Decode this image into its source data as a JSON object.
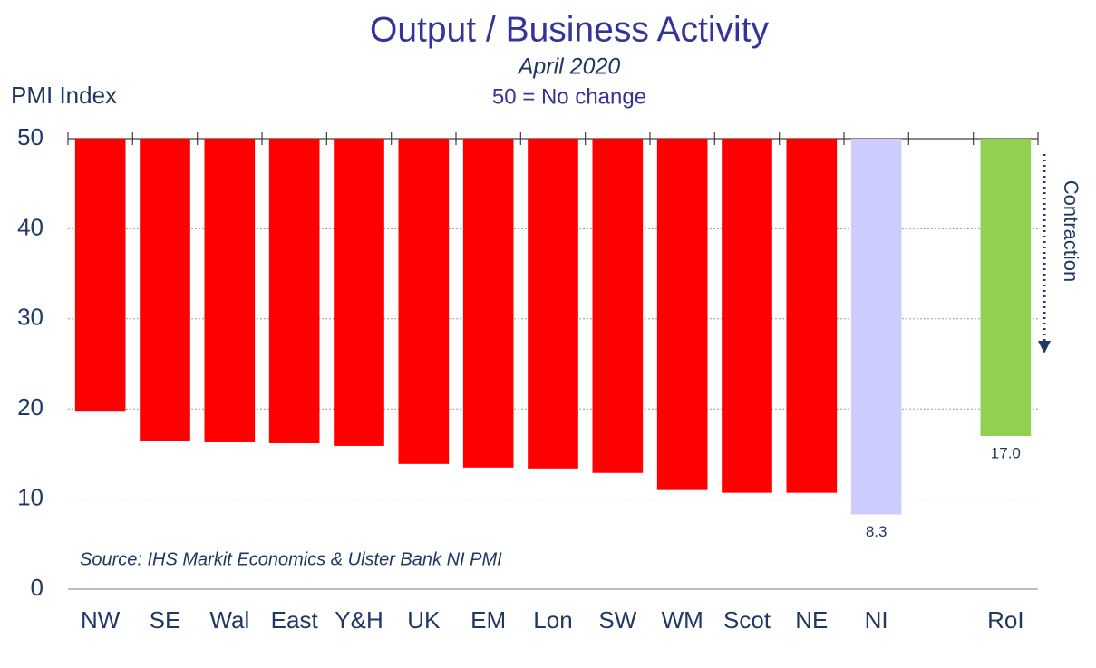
{
  "chart_data": {
    "type": "bar",
    "title": "Output / Business Activity",
    "subtitle": "April 2020",
    "note": "50 = No change",
    "y_label": "PMI Index",
    "source": "Source: IHS Markit Economics & Ulster Bank NI PMI",
    "annotation": "Contraction",
    "categories": [
      "NW",
      "SE",
      "Wal",
      "East",
      "Y&H",
      "UK",
      "EM",
      "Lon",
      "SW",
      "WM",
      "Scot",
      "NE",
      "NI",
      null,
      "RoI"
    ],
    "values": [
      19.7,
      16.4,
      16.3,
      16.2,
      15.9,
      13.9,
      13.5,
      13.4,
      12.9,
      11.0,
      10.7,
      10.7,
      8.3,
      null,
      17.0
    ],
    "value_labels": [
      null,
      null,
      null,
      null,
      null,
      null,
      null,
      null,
      null,
      null,
      null,
      null,
      "8.3",
      null,
      "17.0"
    ],
    "colors": [
      "#ff0000",
      "#ff0000",
      "#ff0000",
      "#ff0000",
      "#ff0000",
      "#ff0000",
      "#ff0000",
      "#ff0000",
      "#ff0000",
      "#ff0000",
      "#ff0000",
      "#ff0000",
      "#ccccff",
      null,
      "#92d050"
    ],
    "ylim": [
      0,
      50
    ],
    "yticks": [
      0,
      10,
      20,
      30,
      40,
      50
    ],
    "grid": true
  }
}
